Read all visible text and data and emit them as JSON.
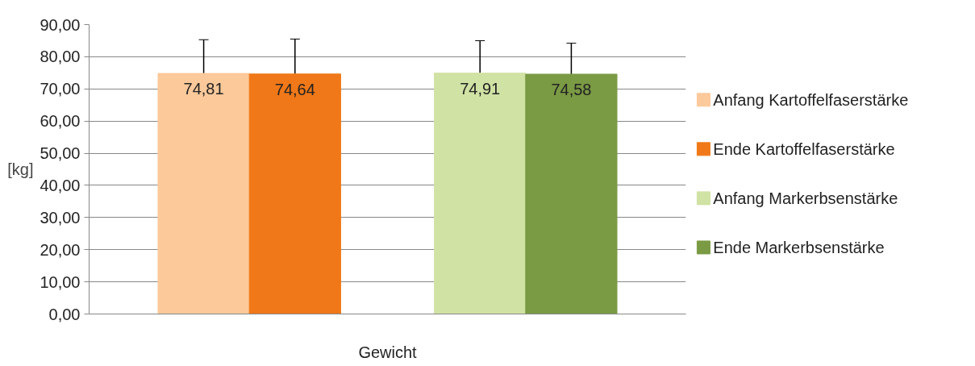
{
  "chart_data": {
    "type": "bar",
    "ylabel": "[kg]",
    "categories": [
      "Gewicht"
    ],
    "series": [
      {
        "name": "Anfang Kartoffelfaserstärke",
        "color": "#fcc99a",
        "values": [
          74.81
        ],
        "value_labels": [
          "74,81"
        ],
        "errors": [
          [
            74.81,
            85.3
          ]
        ]
      },
      {
        "name": "Ende Kartoffelfaserstärke",
        "color": "#f07818",
        "values": [
          74.64
        ],
        "value_labels": [
          "74,64"
        ],
        "errors": [
          [
            74.64,
            85.5
          ]
        ]
      },
      {
        "name": "Anfang Markerbsenstärke",
        "color": "#d0e2a4",
        "values": [
          74.91
        ],
        "value_labels": [
          "74,91"
        ],
        "errors": [
          [
            74.91,
            85.0
          ]
        ]
      },
      {
        "name": "Ende Markerbsenstärke",
        "color": "#7a9a44",
        "values": [
          74.58
        ],
        "value_labels": [
          "74,58"
        ],
        "errors": [
          [
            74.58,
            84.2
          ]
        ]
      }
    ],
    "ylim": [
      0,
      90
    ],
    "yticks": [
      {
        "value": 0,
        "label": "0,00"
      },
      {
        "value": 10,
        "label": "10,00"
      },
      {
        "value": 20,
        "label": "20,00"
      },
      {
        "value": 30,
        "label": "30,00"
      },
      {
        "value": 40,
        "label": "40,00"
      },
      {
        "value": 50,
        "label": "50,00"
      },
      {
        "value": 60,
        "label": "60,00"
      },
      {
        "value": 70,
        "label": "70,00"
      },
      {
        "value": 80,
        "label": "80,00"
      },
      {
        "value": 90,
        "label": "90,00"
      }
    ],
    "grid": "y",
    "legend": "right"
  }
}
